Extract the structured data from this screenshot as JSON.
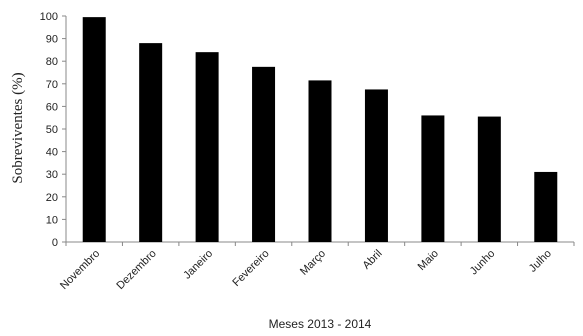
{
  "chart_data": {
    "type": "bar",
    "title": "",
    "xlabel": "Meses 2013 - 2014",
    "ylabel": "Sobreviventes (%)",
    "ylim": [
      0,
      100
    ],
    "yticks": [
      0,
      10,
      20,
      30,
      40,
      50,
      60,
      70,
      80,
      90,
      100
    ],
    "categories": [
      "Novembro",
      "Dezembro",
      "Janeiro",
      "Fevereiro",
      "Março",
      "Abril",
      "Maio",
      "Junho",
      "Julho"
    ],
    "values": [
      99.5,
      88,
      84,
      77.5,
      71.5,
      67.5,
      56,
      55.5,
      31
    ],
    "bar_color": "#000000",
    "grid": false,
    "legend": "none"
  }
}
